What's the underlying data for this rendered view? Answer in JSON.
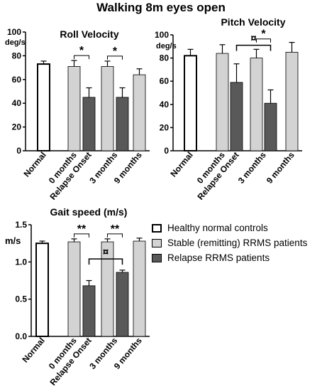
{
  "page_title": "Walking 8m eyes open",
  "legend": [
    {
      "label": "Healthy normal controls",
      "color": "#ffffff"
    },
    {
      "label": "Stable (remitting) RRMS patients",
      "color": "#d3d3d3"
    },
    {
      "label": "Relapse RRMS patients",
      "color": "#595959"
    }
  ],
  "chart_data": [
    {
      "type": "bar",
      "title": "Roll Velocity",
      "ylabel": "deg/s",
      "ylim": [
        0,
        100
      ],
      "yticks": [
        "0",
        "20",
        "40",
        "60",
        "80",
        "100"
      ],
      "categories": [
        "Normal",
        "0 months",
        "Relapse Onset",
        "3 months",
        "9 months"
      ],
      "bars": [
        {
          "group": "Healthy normal controls",
          "value": 73,
          "error": 2.5
        },
        {
          "group": "Stable (remitting) RRMS patients",
          "value": 71,
          "error": 5
        },
        {
          "group": "Relapse RRMS patients",
          "value": 45,
          "error": 8
        },
        {
          "group": "Stable (remitting) RRMS patients",
          "value": 71,
          "error": 4.5
        },
        {
          "group": "Relapse RRMS patients",
          "value": 45,
          "error": 8
        },
        {
          "group": "Stable (remitting) RRMS patients",
          "value": 64,
          "error": 5
        }
      ],
      "annotations": [
        {
          "label": "*",
          "from_bar": 1,
          "to_bar": 2
        },
        {
          "label": "*",
          "from_bar": 3,
          "to_bar": 4
        }
      ]
    },
    {
      "type": "bar",
      "title": "Pitch Velocity",
      "ylabel": "deg/s",
      "ylim": [
        0,
        100
      ],
      "yticks": [
        "0",
        "20",
        "40",
        "60",
        "80",
        "100"
      ],
      "categories": [
        "Normal",
        "0 months",
        "Relapse Onset",
        "3 months",
        "9 months"
      ],
      "bars": [
        {
          "group": "Healthy normal controls",
          "value": 82,
          "error": 5.5
        },
        {
          "group": "Stable (remitting) RRMS patients",
          "value": 84,
          "error": 7.5
        },
        {
          "group": "Relapse RRMS patients",
          "value": 59,
          "error": 16
        },
        {
          "group": "Stable (remitting) RRMS patients",
          "value": 80,
          "error": 7.5
        },
        {
          "group": "Relapse RRMS patients",
          "value": 41,
          "error": 11.5
        },
        {
          "group": "Stable (remitting) RRMS patients",
          "value": 85,
          "error": 8.5
        }
      ],
      "annotations": [
        {
          "label": "¤",
          "from_bar": 2,
          "to_bar": 4
        },
        {
          "label": "*",
          "from_bar": 3,
          "to_bar": 4
        }
      ]
    },
    {
      "type": "bar",
      "title": "Gait speed (m/s)",
      "ylabel": "m/s",
      "ylim": [
        0,
        1.5
      ],
      "yticks": [
        "0.0",
        "0.5",
        "1.0",
        "1.5"
      ],
      "categories": [
        "Normal",
        "0 months",
        "Relapse Onset",
        "3 months",
        "9 months"
      ],
      "bars": [
        {
          "group": "Healthy normal controls",
          "value": 1.25,
          "error": 0.03
        },
        {
          "group": "Stable (remitting) RRMS patients",
          "value": 1.27,
          "error": 0.04
        },
        {
          "group": "Relapse RRMS patients",
          "value": 0.68,
          "error": 0.07
        },
        {
          "group": "Stable (remitting) RRMS patients",
          "value": 1.27,
          "error": 0.04
        },
        {
          "group": "Relapse RRMS patients",
          "value": 0.86,
          "error": 0.03
        },
        {
          "group": "Stable (remitting) RRMS patients",
          "value": 1.28,
          "error": 0.04
        }
      ],
      "annotations": [
        {
          "label": "**",
          "from_bar": 1,
          "to_bar": 2
        },
        {
          "label": "**",
          "from_bar": 3,
          "to_bar": 4
        },
        {
          "label": "¤",
          "from_bar": 2,
          "to_bar": 4
        }
      ]
    }
  ]
}
